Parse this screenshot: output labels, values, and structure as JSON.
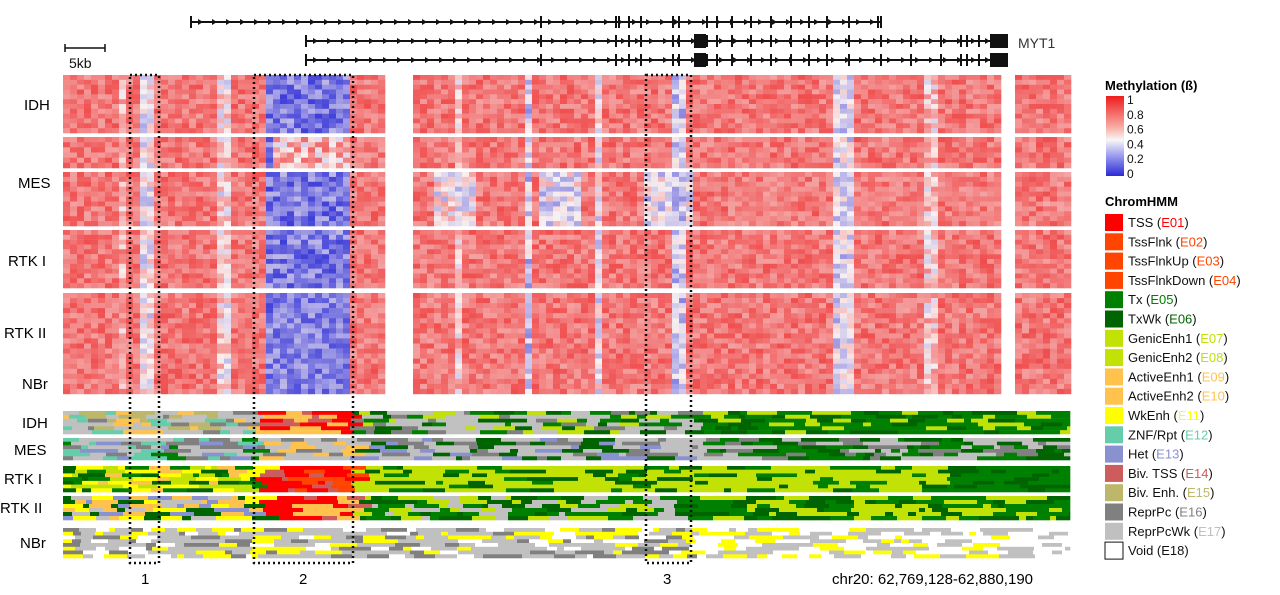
{
  "gene_track": {
    "gene_name": "MYT1",
    "scale_label": "5kb"
  },
  "methylation": {
    "groups": [
      "IDH",
      "MES",
      "RTK I",
      "RTK II",
      "NBr"
    ]
  },
  "chromhmm": {
    "groups": [
      "IDH",
      "MES",
      "RTK I",
      "RTK II",
      "NBr"
    ]
  },
  "regions": [
    "1",
    "2",
    "3"
  ],
  "coordinates": "chr20: 62,769,128-62,880,190",
  "legend": {
    "methylation_title": "Methylation (ß)",
    "methylation_ticks": [
      "1",
      "0.8",
      "0.6",
      "0.4",
      "0.2",
      "0"
    ],
    "colors": {
      "high": "#ee1c1c",
      "mid": "#f7f7f7",
      "low": "#2b2bd6"
    },
    "chromhmm_title": "ChromHMM",
    "states": [
      {
        "name": "TSS",
        "code": "E01",
        "color": "#ff0000"
      },
      {
        "name": "TssFlnk",
        "code": "E02",
        "color": "#ff4500"
      },
      {
        "name": "TssFlnkUp",
        "code": "E03",
        "color": "#ff4500"
      },
      {
        "name": "TssFlnkDown",
        "code": "E04",
        "color": "#ff4500"
      },
      {
        "name": "Tx",
        "code": "E05",
        "color": "#008000"
      },
      {
        "name": "TxWk",
        "code": "E06",
        "color": "#006400"
      },
      {
        "name": "GenicEnh1",
        "code": "E07",
        "color": "#c2e105"
      },
      {
        "name": "GenicEnh2",
        "code": "E08",
        "color": "#c2e105"
      },
      {
        "name": "ActiveEnh1",
        "code": "E09",
        "color": "#ffc34d"
      },
      {
        "name": "ActiveEnh2",
        "code": "E10",
        "color": "#ffc34d"
      },
      {
        "name": "WkEnh",
        "code": "E11",
        "color": "#ffff00"
      },
      {
        "name": "ZNF/Rpt",
        "code": "E12",
        "color": "#66cdaa"
      },
      {
        "name": "Het",
        "code": "E13",
        "color": "#8a91d0"
      },
      {
        "name": "Biv. TSS",
        "code": "E14",
        "color": "#cd5c5c"
      },
      {
        "name": "Biv. Enh.",
        "code": "E15",
        "color": "#bdb76b"
      },
      {
        "name": "ReprPc",
        "code": "E16",
        "color": "#808080"
      },
      {
        "name": "ReprPcWk",
        "code": "E17",
        "color": "#c0c0c0"
      },
      {
        "name": "Void",
        "code": "E18",
        "color": "#ffffff"
      }
    ]
  }
}
